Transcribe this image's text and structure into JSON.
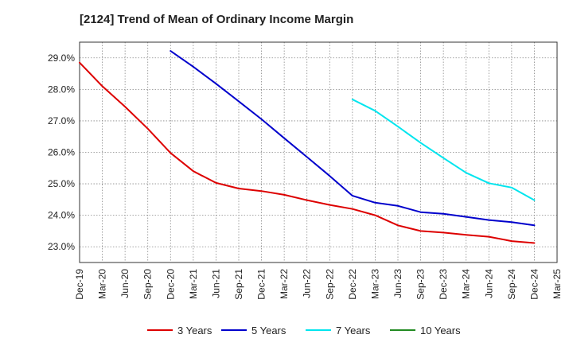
{
  "chart_data": {
    "type": "line",
    "title": "[2124]  Trend of Mean of Ordinary Income Margin",
    "xlabel": "",
    "ylabel": "",
    "x_ticks": [
      "Dec-19",
      "Mar-20",
      "Jun-20",
      "Sep-20",
      "Dec-20",
      "Mar-21",
      "Jun-21",
      "Sep-21",
      "Dec-21",
      "Mar-22",
      "Jun-22",
      "Sep-22",
      "Dec-22",
      "Mar-23",
      "Jun-23",
      "Sep-23",
      "Dec-23",
      "Mar-24",
      "Jun-24",
      "Sep-24",
      "Dec-24",
      "Mar-25"
    ],
    "y_ticks": [
      "29.0%",
      "28.0%",
      "27.0%",
      "26.0%",
      "25.0%",
      "24.0%",
      "23.0%"
    ],
    "ylim": [
      22.5,
      29.5
    ],
    "grid": true,
    "legend_position": "bottom",
    "series": [
      {
        "name": "3 Years",
        "color": "#dd0000",
        "x": [
          "Dec-19",
          "Mar-20",
          "Jun-20",
          "Sep-20",
          "Dec-20",
          "Mar-21",
          "Jun-21",
          "Sep-21",
          "Dec-21",
          "Mar-22",
          "Jun-22",
          "Sep-22",
          "Dec-22",
          "Mar-23",
          "Jun-23",
          "Sep-23",
          "Dec-23",
          "Mar-24",
          "Jun-24",
          "Sep-24",
          "Dec-24"
        ],
        "values": [
          28.85,
          28.1,
          27.45,
          26.75,
          25.98,
          25.4,
          25.03,
          24.85,
          24.77,
          24.65,
          24.48,
          24.33,
          24.2,
          24.0,
          23.68,
          23.5,
          23.45,
          23.38,
          23.32,
          23.18,
          23.12
        ]
      },
      {
        "name": "5 Years",
        "color": "#0000cc",
        "x": [
          "Dec-20",
          "Mar-21",
          "Jun-21",
          "Sep-21",
          "Dec-21",
          "Mar-22",
          "Jun-22",
          "Sep-22",
          "Dec-22",
          "Mar-23",
          "Jun-23",
          "Sep-23",
          "Dec-23",
          "Mar-24",
          "Jun-24",
          "Sep-24",
          "Dec-24"
        ],
        "values": [
          29.22,
          28.72,
          28.18,
          27.62,
          27.05,
          26.45,
          25.85,
          25.25,
          24.62,
          24.4,
          24.3,
          24.1,
          24.05,
          23.95,
          23.85,
          23.78,
          23.68
        ]
      },
      {
        "name": "7 Years",
        "color": "#00e5ee",
        "x": [
          "Dec-22",
          "Mar-23",
          "Jun-23",
          "Sep-23",
          "Dec-23",
          "Mar-24",
          "Jun-24",
          "Sep-24",
          "Dec-24"
        ],
        "values": [
          27.68,
          27.32,
          26.82,
          26.3,
          25.82,
          25.35,
          25.02,
          24.88,
          24.48
        ]
      },
      {
        "name": "10 Years",
        "color": "#228b22",
        "x": [],
        "values": []
      }
    ]
  }
}
